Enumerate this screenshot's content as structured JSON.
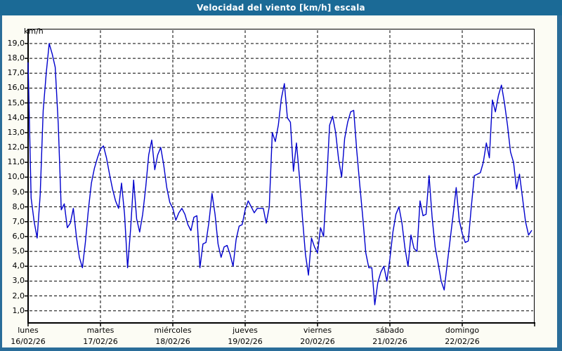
{
  "window": {
    "title": "Velocidad del viento [km/h] escala"
  },
  "colors": {
    "titlebar": "#1b6a96",
    "title_text": "#ffffff",
    "frame": "#2a6d99",
    "background": "#fcfcf4",
    "plot_background": "#ffffff",
    "grid": "#000000",
    "axis": "#000000",
    "line": "#0000cd",
    "label_text": "#000000"
  },
  "chart_data": {
    "type": "line",
    "title": "Velocidad del viento [km/h] escala",
    "ylabel": "km/h",
    "xlabel": "",
    "ylim": [
      0,
      20
    ],
    "grid": "dashed",
    "legend": "none",
    "y_tick_values": [
      19,
      18,
      17,
      16,
      15,
      14,
      13,
      12,
      11,
      10,
      9,
      8,
      7,
      6,
      5,
      4,
      3,
      2,
      1
    ],
    "y_tick_labels": [
      "19,0",
      "18,0",
      "17,0",
      "16,0",
      "15,0",
      "14,0",
      "13,0",
      "12,0",
      "11,0",
      "10,0",
      "9,0",
      "8,0",
      "7,0",
      "6,0",
      "5,0",
      "4,0",
      "3,0",
      "2,0",
      "1,0"
    ],
    "days": [
      {
        "label": "lunes",
        "date": "16/02/26"
      },
      {
        "label": "martes",
        "date": "17/02/26"
      },
      {
        "label": "miércoles",
        "date": "18/02/26"
      },
      {
        "label": "jueves",
        "date": "19/02/26"
      },
      {
        "label": "viernes",
        "date": "20/02/26"
      },
      {
        "label": "sábado",
        "date": "21/02/26"
      },
      {
        "label": "domingo",
        "date": "22/02/26"
      }
    ],
    "series": [
      {
        "name": "Velocidad del viento [km/h]",
        "samples_per_day": 24,
        "values": [
          17.7,
          8.6,
          7.0,
          5.9,
          8.8,
          14.5,
          17.0,
          19.0,
          18.3,
          17.4,
          13.6,
          7.8,
          8.2,
          6.6,
          6.9,
          7.9,
          6.0,
          4.6,
          3.9,
          5.6,
          7.8,
          9.6,
          10.6,
          11.3,
          11.9,
          12.1,
          11.3,
          10.2,
          9.2,
          8.4,
          7.9,
          9.6,
          7.5,
          3.9,
          6.5,
          9.8,
          7.2,
          6.3,
          7.5,
          9.3,
          11.5,
          12.5,
          10.5,
          11.5,
          12.0,
          10.8,
          9.3,
          8.3,
          7.9,
          7.1,
          7.6,
          7.9,
          7.5,
          6.8,
          6.4,
          7.3,
          7.4,
          3.9,
          5.5,
          5.6,
          7.0,
          8.9,
          7.5,
          5.5,
          4.6,
          5.3,
          5.4,
          4.8,
          4.0,
          5.8,
          6.7,
          6.8,
          7.8,
          8.4,
          8.0,
          7.6,
          7.9,
          7.9,
          7.9,
          6.9,
          8.0,
          13.0,
          12.4,
          13.5,
          15.3,
          16.3,
          14.0,
          13.7,
          10.4,
          12.3,
          10.0,
          7.3,
          4.8,
          3.4,
          5.9,
          5.3,
          4.9,
          6.6,
          6.0,
          9.6,
          13.5,
          14.1,
          13.0,
          11.2,
          10.0,
          12.6,
          13.7,
          14.4,
          14.5,
          11.8,
          9.5,
          7.3,
          4.9,
          3.9,
          3.9,
          1.4,
          2.9,
          3.6,
          4.0,
          3.0,
          4.5,
          6.3,
          7.5,
          8.0,
          6.9,
          5.2,
          4.0,
          6.1,
          5.2,
          5.0,
          8.4,
          7.4,
          7.5,
          10.1,
          7.3,
          5.3,
          4.2,
          3.0,
          2.4,
          4.1,
          5.8,
          7.5,
          9.3,
          7.1,
          6.2,
          5.6,
          5.7,
          8.0,
          10.1,
          10.2,
          10.3,
          11.0,
          12.3,
          11.3,
          15.2,
          14.4,
          15.5,
          16.2,
          15.0,
          13.5,
          11.7,
          11.0,
          9.2,
          10.2,
          8.6,
          7.0,
          6.1,
          6.4
        ]
      }
    ]
  }
}
